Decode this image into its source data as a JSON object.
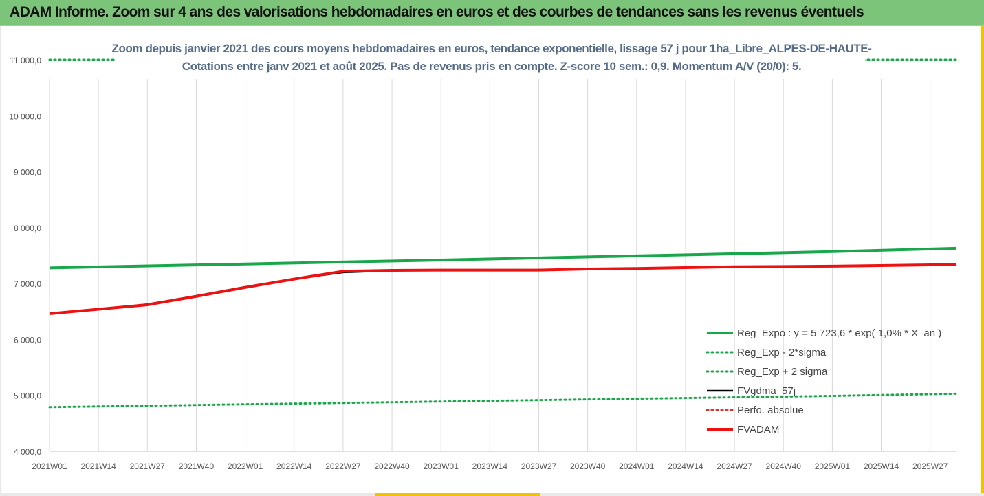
{
  "banner": {
    "title": "ADAM Informe. Zoom sur 4 ans des valorisations hebdomadaires en euros et des courbes de tendances sans les revenus éventuels"
  },
  "colors": {
    "banner_bg": "#7cc47a",
    "frame_accent": "#f2c200",
    "title_text": "#556b8a",
    "reg_expo": "#1aa64a",
    "sigma": "#1aa64a",
    "fvgdma": "#000000",
    "perfo": "#e03030",
    "fvadam": "#ee1111"
  },
  "chart_data": {
    "type": "line",
    "title": "Zoom depuis janvier 2021 des cours moyens hebdomadaires en euros, tendance exponentielle, lissage 57 j pour 1ha_Libre_ALPES-DE-HAUTE-",
    "subtitle": "Cotations entre janv 2021 et août 2025.  Pas de revenus pris en compte. Z-score 10 sem.: 0,9. Momentum A/V (20/0): 5.",
    "xlabel": "",
    "ylabel": "",
    "ylim": [
      4000,
      11000
    ],
    "yticks": [
      4000,
      5000,
      6000,
      7000,
      8000,
      9000,
      10000,
      11000
    ],
    "ytick_labels": [
      "4 000,0",
      "5 000,0",
      "6 000,0",
      "7 000,0",
      "8 000,0",
      "9 000,0",
      "10 000,0",
      "11 000,0"
    ],
    "x_start": "2021W01",
    "x_end": "2025W34",
    "xtick_labels": [
      "2021W01",
      "2021W14",
      "2021W27",
      "2021W40",
      "2022W01",
      "2022W14",
      "2022W27",
      "2022W40",
      "2023W01",
      "2023W14",
      "2023W27",
      "2023W40",
      "2024W01",
      "2024W14",
      "2024W27",
      "2024W40",
      "2025W01",
      "2025W14",
      "2025W27"
    ],
    "grid": "vertical",
    "legend_position": "right",
    "series": [
      {
        "name": "Reg_Expo : y = 5 723,6 * exp( 1,0% *  X_an )",
        "style": "solid-thick",
        "color": "#1aa64a",
        "points": [
          [
            "2021W01",
            7280
          ],
          [
            "2022W01",
            7350
          ],
          [
            "2023W01",
            7420
          ],
          [
            "2024W01",
            7495
          ],
          [
            "2025W01",
            7570
          ],
          [
            "2025W34",
            7630
          ]
        ]
      },
      {
        "name": "Reg_Exp - 2*sigma",
        "style": "dotted",
        "color": "#1aa64a",
        "points": [
          [
            "2021W01",
            4790
          ],
          [
            "2022W01",
            4840
          ],
          [
            "2023W01",
            4890
          ],
          [
            "2024W01",
            4940
          ],
          [
            "2025W01",
            4990
          ],
          [
            "2025W34",
            5030
          ]
        ]
      },
      {
        "name": "Reg_Exp + 2 sigma",
        "style": "dotted",
        "color": "#1aa64a",
        "points": [
          [
            "2021W01",
            11000
          ],
          [
            "2025W34",
            11000
          ]
        ]
      },
      {
        "name": "FVgdma_57j",
        "style": "solid",
        "color": "#000000",
        "points": [
          [
            "2021W01",
            6460
          ],
          [
            "2021W14",
            6540
          ],
          [
            "2021W27",
            6630
          ],
          [
            "2021W40",
            6780
          ],
          [
            "2022W01",
            6940
          ],
          [
            "2022W14",
            7080
          ],
          [
            "2022W27",
            7200
          ],
          [
            "2022W40",
            7230
          ],
          [
            "2023W01",
            7240
          ],
          [
            "2023W27",
            7240
          ],
          [
            "2023W40",
            7260
          ],
          [
            "2024W01",
            7270
          ],
          [
            "2024W27",
            7300
          ],
          [
            "2025W01",
            7310
          ],
          [
            "2025W34",
            7340
          ]
        ]
      },
      {
        "name": "Perfo. absolue",
        "style": "dotted",
        "color": "#e03030",
        "points": []
      },
      {
        "name": "FVADAM",
        "style": "solid-thick",
        "color": "#ee1111",
        "points": [
          [
            "2021W01",
            6460
          ],
          [
            "2021W14",
            6540
          ],
          [
            "2021W27",
            6620
          ],
          [
            "2021W40",
            6770
          ],
          [
            "2022W01",
            6930
          ],
          [
            "2022W14",
            7080
          ],
          [
            "2022W27",
            7220
          ],
          [
            "2022W40",
            7235
          ],
          [
            "2023W01",
            7240
          ],
          [
            "2023W27",
            7240
          ],
          [
            "2023W40",
            7260
          ],
          [
            "2024W01",
            7270
          ],
          [
            "2024W27",
            7300
          ],
          [
            "2025W01",
            7310
          ],
          [
            "2025W34",
            7340
          ]
        ]
      }
    ]
  }
}
